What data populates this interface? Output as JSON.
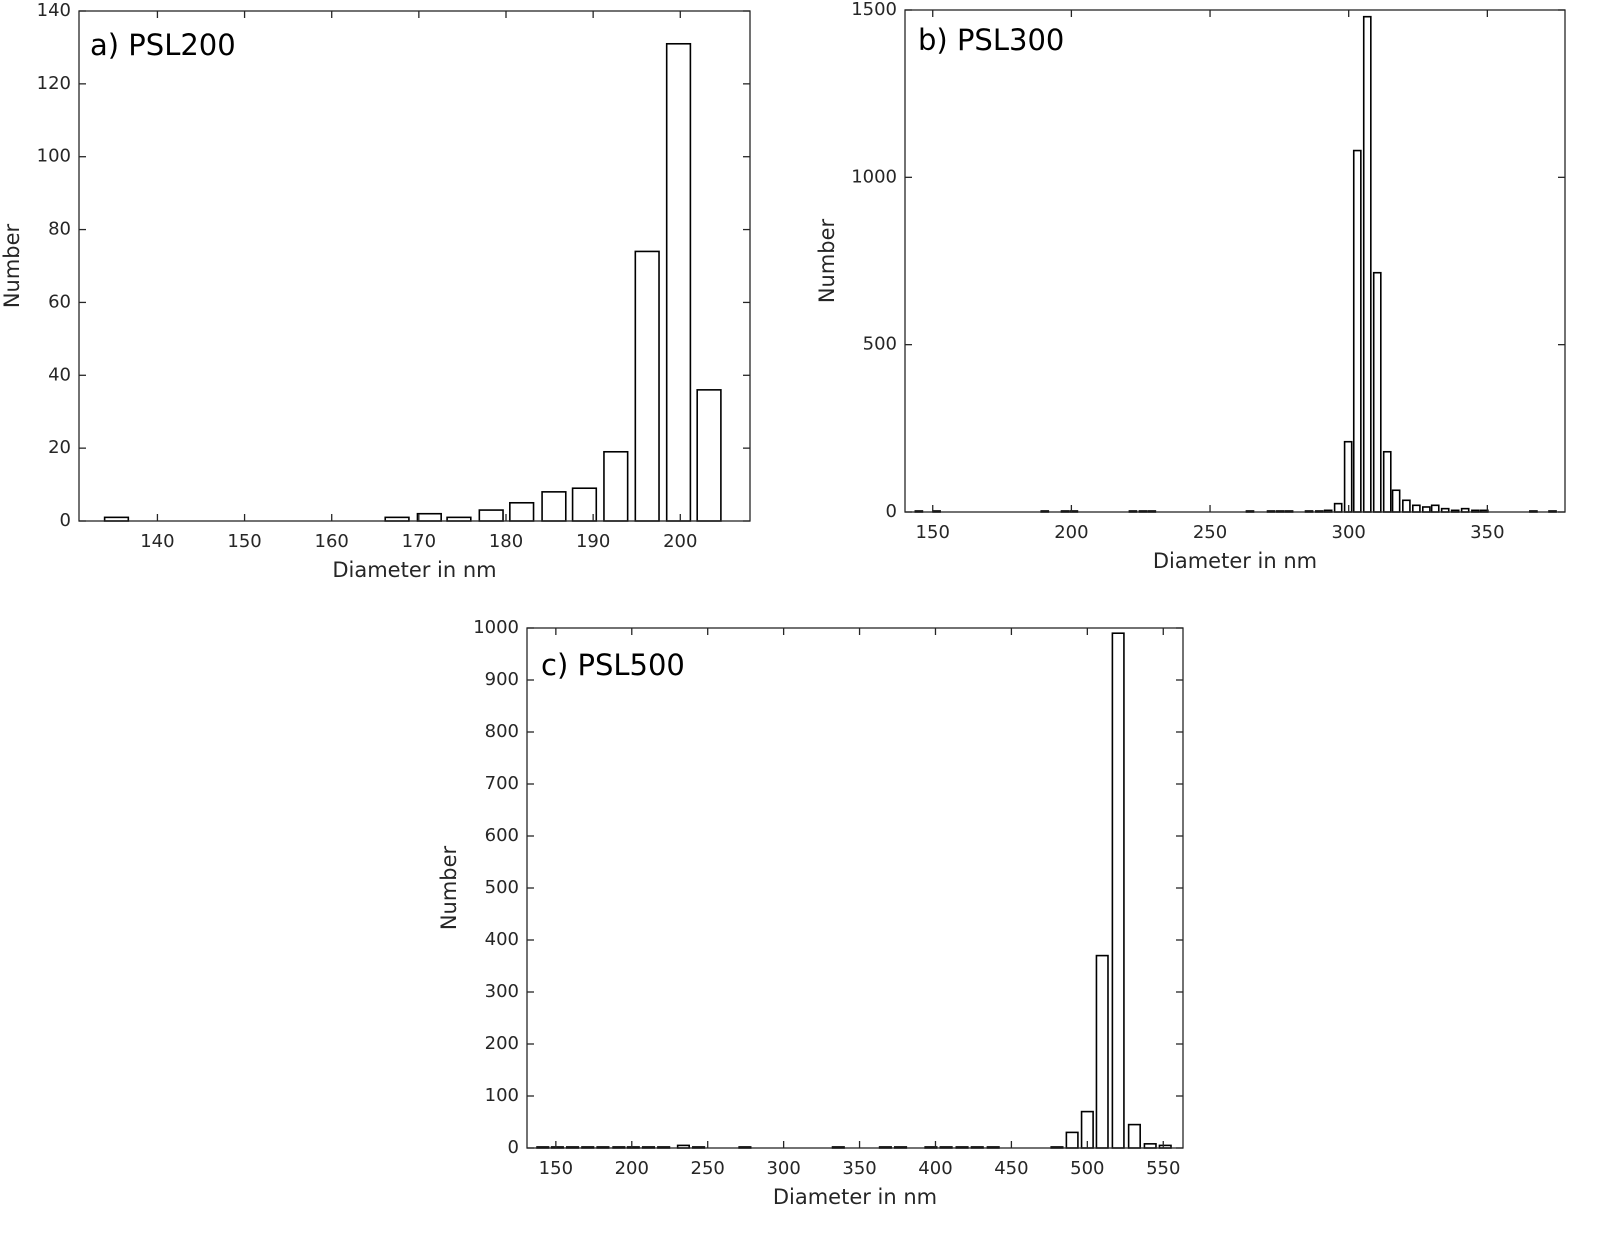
{
  "chart_data": [
    {
      "type": "bar",
      "title": "a) PSL200",
      "xlabel": "Diameter in nm",
      "ylabel": "Number",
      "x": [
        135.3,
        167.5,
        171.2,
        174.6,
        178.3,
        181.8,
        185.5,
        189,
        192.6,
        196.2,
        199.8,
        203.3
      ],
      "values": [
        1,
        1,
        2,
        1,
        3,
        5,
        8,
        9,
        19,
        74,
        131,
        36
      ],
      "color": "#ffffff",
      "edgecolor": "#000000",
      "xlim": [
        131,
        208
      ],
      "xticks": [
        140,
        150,
        160,
        170,
        180,
        190,
        200
      ],
      "ylim": [
        0,
        140
      ],
      "yticks": [
        0,
        20,
        40,
        60,
        80,
        100,
        120,
        140
      ]
    },
    {
      "type": "bar",
      "title": "b) PSL300",
      "xlabel": "Diameter in nm",
      "ylabel": "Number",
      "x": [
        145,
        151.4,
        190.4,
        197.7,
        200.9,
        222.2,
        225.8,
        229,
        264.4,
        272,
        275.3,
        278.5,
        285.7,
        289.4,
        292.6,
        296.2,
        299.8,
        303.1,
        306.7,
        310.3,
        313.9,
        317.1,
        320.8,
        324.4,
        328,
        331.2,
        334.8,
        338.4,
        342,
        345.7,
        348.9,
        366.6,
        373.5
      ],
      "values": [
        3,
        3,
        3,
        3,
        3,
        3,
        3,
        3,
        3,
        3,
        3,
        3,
        3,
        3,
        5,
        25,
        210,
        1080,
        1480,
        715,
        180,
        65,
        35,
        20,
        15,
        20,
        10,
        5,
        10,
        5,
        5,
        3,
        3
      ],
      "color": "#ffffff",
      "edgecolor": "#000000",
      "xlim": [
        140,
        378
      ],
      "xticks": [
        150,
        200,
        250,
        300,
        350
      ],
      "ylim": [
        0,
        1500
      ],
      "yticks": [
        0,
        500,
        1000,
        1500
      ]
    },
    {
      "type": "bar",
      "title": "c) PSL500",
      "xlabel": "Diameter in nm",
      "ylabel": "Number",
      "x": [
        141.4,
        151,
        161,
        171,
        181,
        191.5,
        201,
        211,
        221,
        234,
        244,
        274.5,
        336,
        367,
        377,
        397,
        407,
        417.5,
        427.5,
        438,
        480,
        490,
        500,
        509.8,
        520.3,
        531,
        541.4,
        551.3
      ],
      "values": [
        2,
        2,
        2,
        2,
        2,
        2,
        2,
        2,
        2,
        5,
        2,
        2,
        2,
        2,
        2,
        2,
        2,
        2,
        2,
        2,
        2,
        30,
        70,
        370,
        990,
        45,
        8,
        5
      ],
      "color": "#ffffff",
      "edgecolor": "#000000",
      "xlim": [
        131,
        563
      ],
      "xticks": [
        150,
        200,
        250,
        300,
        350,
        400,
        450,
        500,
        550
      ],
      "ylim": [
        0,
        1000
      ],
      "yticks": [
        0,
        100,
        200,
        300,
        400,
        500,
        600,
        700,
        800,
        900,
        1000
      ]
    }
  ]
}
